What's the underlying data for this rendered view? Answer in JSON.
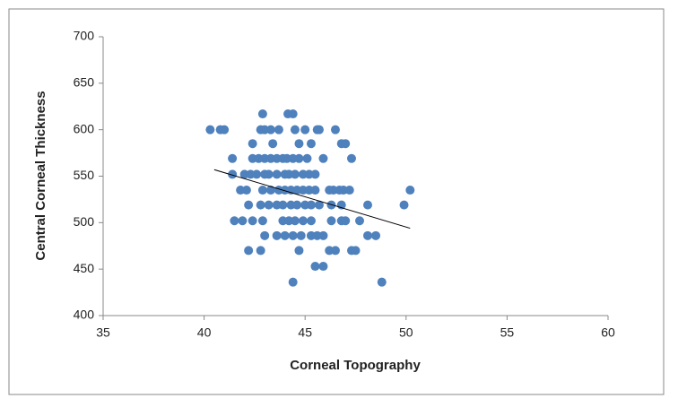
{
  "chart_data": {
    "type": "scatter",
    "xlabel": "Corneal Topography",
    "ylabel": "Central Corneal Thickness",
    "color": "#4f81bd",
    "xlim": [
      35,
      60
    ],
    "xticks": [
      35,
      40,
      45,
      50,
      55,
      60
    ],
    "ylim": [
      400,
      700
    ],
    "yticks": [
      400,
      450,
      500,
      550,
      600,
      650,
      700
    ],
    "x": [
      42.9,
      44.15,
      44.4,
      40.3,
      40.8,
      41.0,
      42.8,
      43.0,
      43.3,
      43.7,
      44.5,
      45.0,
      45.6,
      45.7,
      46.5,
      42.4,
      43.4,
      44.7,
      45.3,
      46.8,
      47.0,
      41.4,
      42.4,
      42.7,
      43.0,
      43.3,
      43.6,
      43.9,
      44.1,
      44.4,
      44.7,
      45.1,
      45.9,
      47.3,
      41.4,
      42.0,
      42.3,
      42.6,
      43.0,
      43.2,
      43.6,
      44.0,
      44.2,
      44.5,
      44.9,
      45.2,
      45.5,
      41.8,
      42.1,
      42.9,
      43.3,
      43.7,
      44.0,
      44.3,
      44.6,
      44.9,
      45.2,
      45.5,
      46.2,
      46.4,
      46.7,
      46.9,
      47.2,
      50.2,
      42.2,
      42.8,
      43.2,
      43.6,
      43.9,
      44.3,
      44.6,
      45.0,
      45.3,
      45.7,
      46.3,
      46.8,
      48.1,
      49.9,
      41.5,
      41.9,
      42.4,
      42.9,
      43.9,
      44.2,
      44.5,
      44.9,
      45.3,
      46.3,
      46.8,
      47.0,
      47.7,
      43.0,
      43.6,
      44.0,
      44.4,
      44.8,
      45.3,
      45.6,
      45.9,
      48.1,
      48.5,
      42.2,
      42.8,
      44.7,
      46.2,
      46.5,
      47.3,
      47.5,
      45.5,
      45.9,
      44.4,
      48.8
    ],
    "y": [
      617,
      617,
      617,
      600,
      600,
      600,
      600,
      600,
      600,
      600,
      600,
      600,
      600,
      600,
      600,
      585,
      585,
      585,
      585,
      585,
      585,
      569,
      569,
      569,
      569,
      569,
      569,
      569,
      569,
      569,
      569,
      569,
      569,
      569,
      552,
      552,
      552,
      552,
      552,
      552,
      552,
      552,
      552,
      552,
      552,
      552,
      552,
      535,
      535,
      535,
      535,
      535,
      535,
      535,
      535,
      535,
      535,
      535,
      535,
      535,
      535,
      535,
      535,
      535,
      519,
      519,
      519,
      519,
      519,
      519,
      519,
      519,
      519,
      519,
      519,
      519,
      519,
      519,
      502,
      502,
      502,
      502,
      502,
      502,
      502,
      502,
      502,
      502,
      502,
      502,
      502,
      486,
      486,
      486,
      486,
      486,
      486,
      486,
      486,
      486,
      486,
      470,
      470,
      470,
      470,
      470,
      470,
      470,
      453,
      453,
      436,
      436
    ],
    "trendline": {
      "x": [
        40.5,
        50.2
      ],
      "y": [
        557,
        494
      ]
    }
  }
}
